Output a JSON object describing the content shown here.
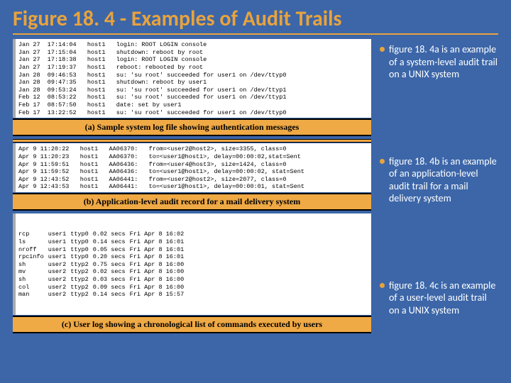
{
  "colors": {
    "background": "#3c66a8",
    "accent": "#e8a33d",
    "captionbar": "#efa945",
    "panel_bg": "#ffffff",
    "text": "#ffffff",
    "log_text": "#000000"
  },
  "title": "Figure 18. 4 - Examples of Audit Trails",
  "bullets": [
    "figure 18. 4a is an example of a system-level audit trail on a UNIX system",
    "figure 18. 4b is an example of an application-level audit trail for a mail delivery system",
    "figure 18. 4c is an example of a user-level audit trail on a UNIX system"
  ],
  "panels": {
    "a": {
      "caption": "(a) Sample system log file showing authentication messages",
      "lines": [
        "Jan 27  17:14:04   host1   login: ROOT LOGIN console",
        "Jan 27  17:15:04   host1   shutdown: reboot by root",
        "Jan 27  17:18:38   host1   login: ROOT LOGIN console",
        "Jan 27  17:19:37   host1   reboot: rebooted by root",
        "Jan 28  09:46:53   host1   su: 'su root' succeeded for user1 on /dev/ttyp0",
        "Jan 28  09:47:35   host1   shutdown: reboot by user1",
        "Jan 28  09:53:24   host1   su: 'su root' succeeded for user1 on /dev/ttyp1",
        "Feb 12  08:53:22   host1   su: 'su root' succeeded for user1 on /dev/ttyp1",
        "Feb 17  08:57:50   host1   date: set by user1",
        "Feb 17  13:22:52   host1   su: 'su root' succeeded for user1 on /dev/ttyp0"
      ]
    },
    "b": {
      "caption": "(b) Application-level audit record for a mail delivery system",
      "lines": [
        "Apr 9 11:20:22   host1   AA06370:   from=<user2@host2>, size=3355, class=0",
        "Apr 9 11:20:23   host1   AA06370:   to=<user1@host1>, delay=00:00:02,stat=Sent",
        "Apr 9 11:59:51   host1   AA06436:   from=<user4@host3>, size=1424, class=0",
        "Apr 9 11:59:52   host1   AA06436:   to=<user1@host1>, delay=00:00:02, stat=Sent",
        "Apr 9 12:43:52   host1   AA06441:   from=<user2@host2>, size=2077, class=0",
        "Apr 9 12:43:53   host1   AA06441:   to=<user1@host1>, delay=00:00:01, stat=Sent"
      ]
    },
    "c": {
      "caption": "(c) User log showing a chronological list of commands executed by users",
      "rows": [
        [
          "rcp",
          "user1",
          "ttyp0",
          "0.02 secs",
          "Fri Apr 8 16:02"
        ],
        [
          "ls",
          "user1",
          "ttyp0",
          "0.14 secs",
          "Fri Apr 8 16:01"
        ],
        [
          "nroff",
          "user1",
          "ttyp0",
          "0.05 secs",
          "Fri Apr 8 16:01"
        ],
        [
          "rpcinfo",
          "user1",
          "ttyp0",
          "0.20 secs",
          "Fri Apr 8 16:01"
        ],
        [
          "sh",
          "user2",
          "ttyp2",
          "0.75 secs",
          "Fri Apr 8 16:00"
        ],
        [
          "mv",
          "user2",
          "ttyp2",
          "0.02 secs",
          "Fri Apr 8 16:00"
        ],
        [
          "sh",
          "user2",
          "ttyp2",
          "0.03 secs",
          "Fri Apr 8 16:00"
        ],
        [
          "col",
          "user2",
          "ttyp2",
          "0.09 secs",
          "Fri Apr 8 16:00"
        ],
        [
          "man",
          "user2",
          "ttyp2",
          "0.14 secs",
          "Fri Apr 8 15:57"
        ]
      ]
    }
  }
}
